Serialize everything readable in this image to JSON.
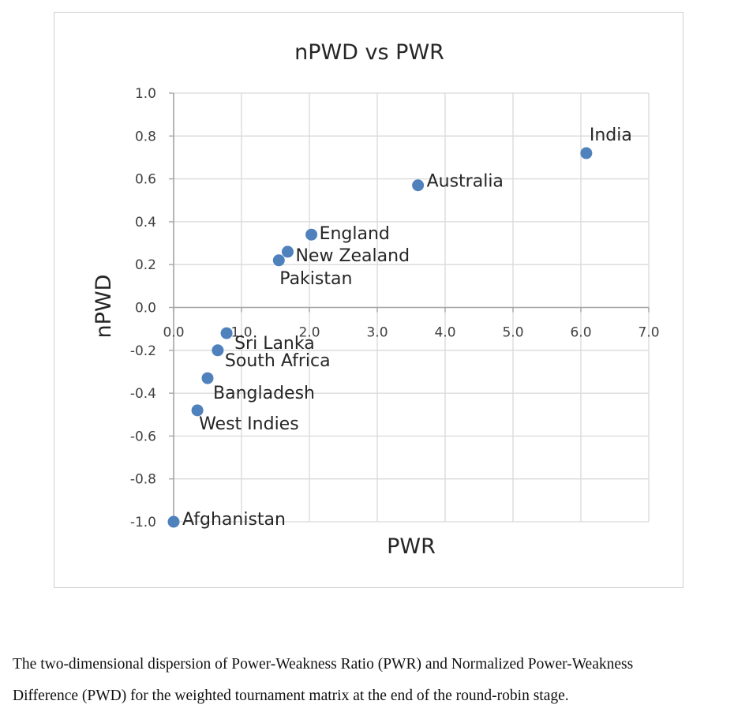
{
  "chart_data": {
    "type": "scatter",
    "title": "nPWD vs PWR",
    "xlabel": "PWR",
    "ylabel": "nPWD",
    "xlim": [
      0,
      7
    ],
    "ylim": [
      -1,
      1
    ],
    "x_ticks": [
      "0.0",
      "1.0",
      "2.0",
      "3.0",
      "4.0",
      "5.0",
      "6.0",
      "7.0"
    ],
    "y_ticks": [
      "-1.0",
      "-0.8",
      "-0.6",
      "-0.4",
      "-0.2",
      "0.0",
      "0.2",
      "0.4",
      "0.6",
      "0.8",
      "1.0"
    ],
    "grid": true,
    "marker_color": "#4f81bd",
    "points": [
      {
        "label": "India",
        "x": 6.08,
        "y": 0.72
      },
      {
        "label": "Australia",
        "x": 3.6,
        "y": 0.57
      },
      {
        "label": "England",
        "x": 2.03,
        "y": 0.34
      },
      {
        "label": "New Zealand",
        "x": 1.68,
        "y": 0.26
      },
      {
        "label": "Pakistan",
        "x": 1.55,
        "y": 0.22
      },
      {
        "label": "Sri Lanka",
        "x": 0.78,
        "y": -0.12
      },
      {
        "label": "South Africa",
        "x": 0.65,
        "y": -0.2
      },
      {
        "label": "Bangladesh",
        "x": 0.5,
        "y": -0.33
      },
      {
        "label": "West Indies",
        "x": 0.35,
        "y": -0.48
      },
      {
        "label": "Afghanistan",
        "x": 0.0,
        "y": -1.0
      }
    ]
  },
  "caption": {
    "line1": "The two-dimensional dispersion of Power-Weakness Ratio (PWR) and Normalized Power-Weakness",
    "line2": "Difference (PWD) for the weighted tournament matrix at the end of the round-robin stage."
  }
}
